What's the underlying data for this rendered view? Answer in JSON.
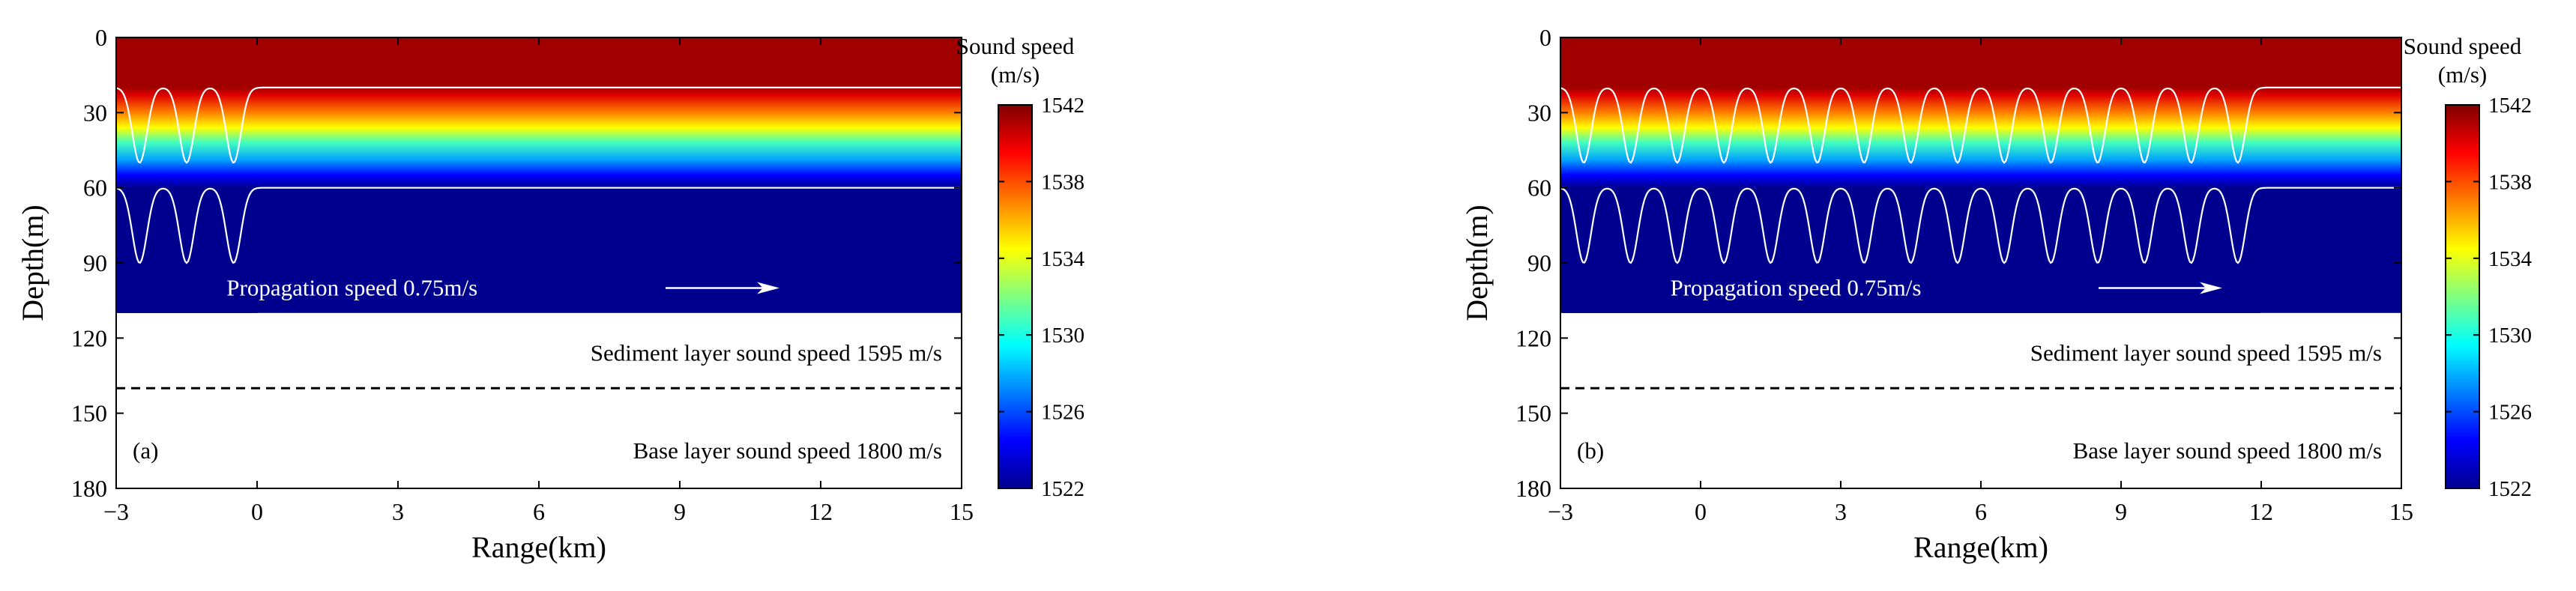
{
  "colors": {
    "jet": [
      "#00008f",
      "#0000ff",
      "#00ffff",
      "#ffff00",
      "#ff0000",
      "#800000"
    ],
    "water_deep": "#00008f",
    "surface": "#a00000",
    "wave_line": "#ffffff",
    "sediment_line": "#000000"
  },
  "chart_data": [
    {
      "type": "heatmap",
      "panel_label": "(a)",
      "xlabel": "Range(km)",
      "ylabel": "Depth(m)",
      "xlim": [
        -3,
        15
      ],
      "ylim": [
        0,
        180
      ],
      "xticks": [
        -3,
        0,
        3,
        6,
        9,
        12,
        15
      ],
      "yticks": [
        0,
        30,
        60,
        90,
        120,
        150,
        180
      ],
      "xtick_labels": [
        "−3",
        "0",
        "3",
        "6",
        "9",
        "12",
        "15"
      ],
      "ytick_labels": [
        "0",
        "30",
        "60",
        "90",
        "120",
        "150",
        "180"
      ],
      "water_depth": 110,
      "thermocline_upper_depth": 20,
      "thermocline_lower_depth": 60,
      "wave_amplitude": 30,
      "soliton_troughs_km": [
        -2.5,
        -1.5,
        -0.5
      ],
      "wave_width_km": 0.22,
      "sediment_interface_depth": 140,
      "annotations": {
        "propagation": "Propagation speed 0.75m/s",
        "sediment": "Sediment layer sound speed 1595 m/s",
        "base": "Base layer sound speed 1800 m/s"
      },
      "colorbar": {
        "title_line1": "Sound speed",
        "title_line2": "(m/s)",
        "min": 1522,
        "max": 1542,
        "ticks": [
          1542,
          1538,
          1534,
          1530,
          1526,
          1522
        ],
        "tick_labels": [
          "1542",
          "1538",
          "1534",
          "1530",
          "1526",
          "1522"
        ]
      }
    },
    {
      "type": "heatmap",
      "panel_label": "(b)",
      "xlabel": "Range(km)",
      "ylabel": "Depth(m)",
      "xlim": [
        -3,
        15
      ],
      "ylim": [
        0,
        180
      ],
      "xticks": [
        -3,
        0,
        3,
        6,
        9,
        12,
        15
      ],
      "yticks": [
        0,
        30,
        60,
        90,
        120,
        150,
        180
      ],
      "xtick_labels": [
        "−3",
        "0",
        "3",
        "6",
        "9",
        "12",
        "15"
      ],
      "ytick_labels": [
        "0",
        "30",
        "60",
        "90",
        "120",
        "150",
        "180"
      ],
      "water_depth": 110,
      "thermocline_upper_depth": 20,
      "thermocline_lower_depth": 60,
      "wave_amplitude": 30,
      "soliton_troughs_km": [
        -2.5,
        -1.5,
        -0.5,
        0.5,
        1.5,
        2.5,
        3.5,
        4.5,
        5.5,
        6.5,
        7.5,
        8.5,
        9.5,
        10.5,
        11.5
      ],
      "wave_width_km": 0.22,
      "sediment_interface_depth": 140,
      "annotations": {
        "propagation": "Propagation speed 0.75m/s",
        "sediment": "Sediment layer sound speed 1595 m/s",
        "base": "Base layer sound speed 1800 m/s"
      },
      "colorbar": {
        "title_line1": "Sound speed",
        "title_line2": "(m/s)",
        "min": 1522,
        "max": 1542,
        "ticks": [
          1542,
          1538,
          1534,
          1530,
          1526,
          1522
        ],
        "tick_labels": [
          "1542",
          "1538",
          "1534",
          "1530",
          "1526",
          "1522"
        ]
      }
    }
  ]
}
